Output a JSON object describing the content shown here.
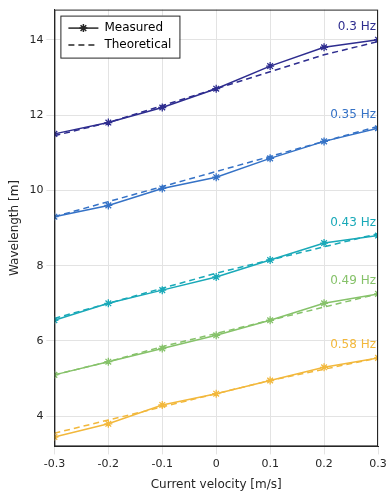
{
  "chart_data": {
    "type": "line",
    "x_label": "Current velocity [m/s]",
    "y_label": "Wavelength [m]",
    "x": [
      -0.3,
      -0.2,
      -0.1,
      0,
      0.1,
      0.2,
      0.3
    ],
    "xlim": [
      -0.3,
      0.3
    ],
    "xticks": [
      -0.3,
      -0.2,
      -0.1,
      0,
      0.1,
      0.2,
      0.3
    ],
    "ylim": [
      3.2,
      14.8
    ],
    "yticks": [
      4,
      6,
      8,
      10,
      12,
      14
    ],
    "grid": true,
    "legend": "upper left",
    "legend_entries": [
      {
        "name": "Measured",
        "line_style": "solid",
        "marker": "star"
      },
      {
        "name": "Theoretical",
        "line_style": "dashed",
        "marker": "none"
      }
    ],
    "series": [
      {
        "name": "0.3 Hz",
        "color": "#2e2d8f",
        "measured": [
          11.5,
          11.8,
          12.2,
          12.7,
          13.3,
          13.8,
          14.0
        ],
        "theoretical": [
          11.45,
          11.8,
          12.25,
          12.7,
          13.15,
          13.6,
          13.95
        ]
      },
      {
        "name": "0.35 Hz",
        "color": "#3572c6",
        "measured": [
          9.3,
          9.6,
          10.05,
          10.35,
          10.85,
          11.3,
          11.65
        ],
        "theoretical": [
          9.3,
          9.7,
          10.1,
          10.5,
          10.9,
          11.3,
          11.7
        ]
      },
      {
        "name": "0.43 Hz",
        "color": "#19a9b8",
        "measured": [
          6.55,
          7.0,
          7.35,
          7.7,
          8.15,
          8.6,
          8.8
        ],
        "theoretical": [
          6.6,
          7.0,
          7.4,
          7.8,
          8.15,
          8.5,
          8.85
        ]
      },
      {
        "name": "0.49 Hz",
        "color": "#86c26a",
        "measured": [
          5.1,
          5.45,
          5.8,
          6.15,
          6.55,
          7.0,
          7.25
        ],
        "theoretical": [
          5.1,
          5.45,
          5.85,
          6.2,
          6.55,
          6.9,
          7.25
        ]
      },
      {
        "name": "0.58 Hz",
        "color": "#f2b83c",
        "measured": [
          3.45,
          3.8,
          4.3,
          4.6,
          4.95,
          5.3,
          5.55
        ],
        "theoretical": [
          3.55,
          3.9,
          4.25,
          4.6,
          4.95,
          5.25,
          5.55
        ]
      }
    ]
  }
}
